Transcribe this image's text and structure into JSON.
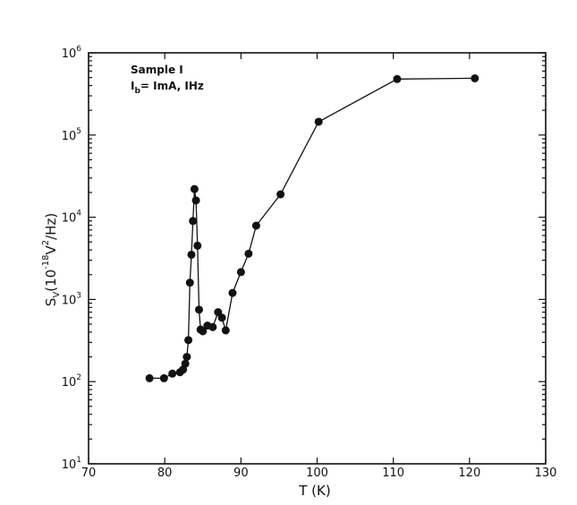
{
  "chart_data": {
    "type": "scatter",
    "xlabel": "T (K)",
    "ylabel_main": "S",
    "ylabel_sub": "V",
    "ylabel_open": "(10",
    "ylabel_exp1": "-18",
    "ylabel_unit": "V",
    "ylabel_exp2": "2",
    "ylabel_close": "/Hz)",
    "annotation_line1": "Sample I",
    "annotation_ib": "I",
    "annotation_ib_sub": "b",
    "annotation_line2_rest": "= ImA, IHz",
    "xlim": [
      70,
      130
    ],
    "ylim": [
      10,
      1000000
    ],
    "yscale": "log",
    "grid": false,
    "color": "#111111",
    "x_ticks": [
      "70",
      "80",
      "90",
      "100",
      "110",
      "120",
      "130"
    ],
    "y_ticks": [
      {
        "base": "10",
        "exp": "1"
      },
      {
        "base": "10",
        "exp": "2"
      },
      {
        "base": "10",
        "exp": "3"
      },
      {
        "base": "10",
        "exp": "4"
      },
      {
        "base": "10",
        "exp": "5"
      },
      {
        "base": "10",
        "exp": "6"
      }
    ],
    "series": [
      {
        "x": [
          78.0,
          79.9,
          81.0,
          82.0,
          82.4,
          82.7,
          82.9,
          83.1,
          83.3,
          83.5,
          83.7,
          83.9,
          84.1,
          84.3,
          84.5,
          84.7,
          85.0,
          85.6,
          86.3,
          87.0,
          87.5,
          88.0,
          88.9,
          90.0,
          91.0,
          92.0,
          95.2,
          100.2,
          110.5,
          120.7
        ],
        "y": [
          110,
          110,
          125,
          130,
          140,
          165,
          200,
          320,
          1600,
          3500,
          9000,
          22000,
          16000,
          4500,
          750,
          430,
          410,
          480,
          460,
          700,
          600,
          420,
          1200,
          2150,
          3600,
          7900,
          19000,
          145000,
          480000,
          490000
        ]
      }
    ]
  }
}
